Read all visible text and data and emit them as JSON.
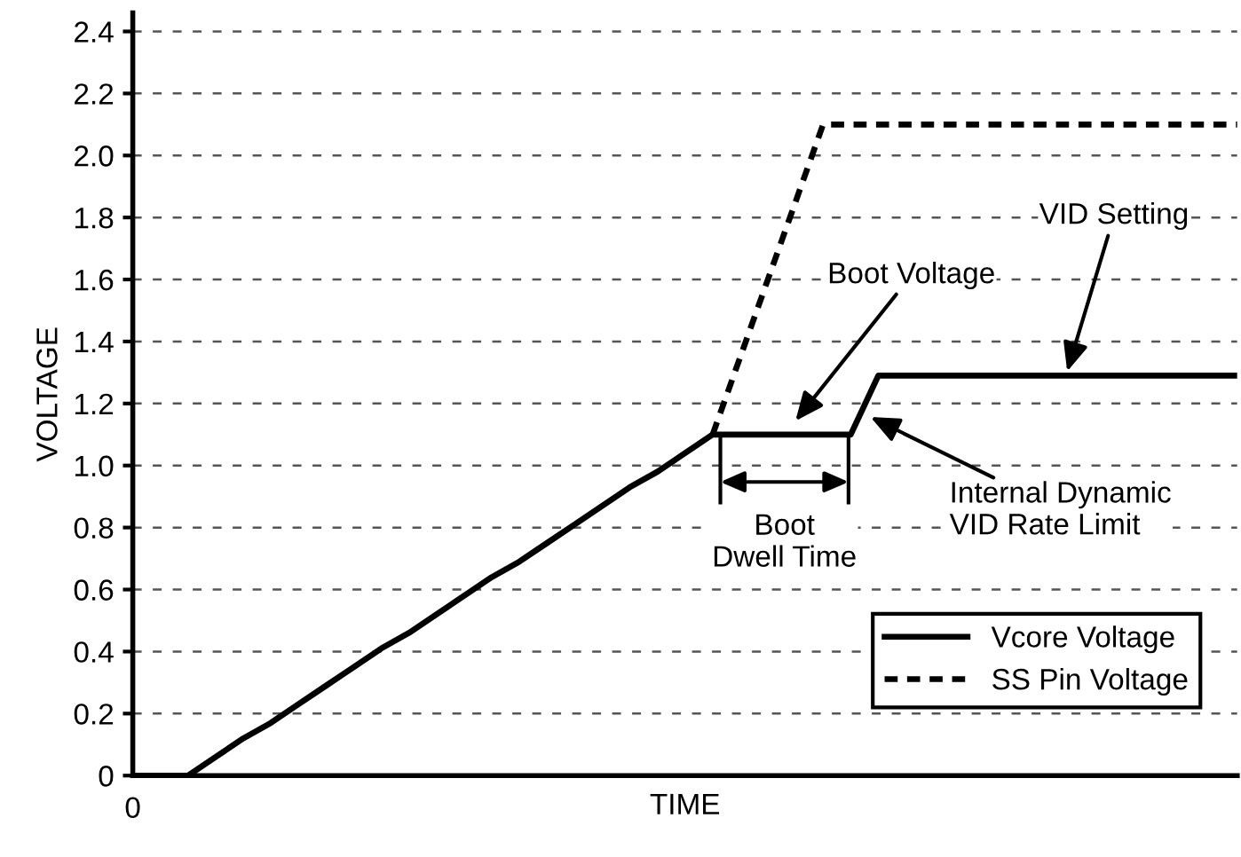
{
  "chart_data": {
    "type": "line",
    "xlabel": "TIME",
    "ylabel": "VOLTAGE",
    "categories": [
      null,
      null,
      null,
      null,
      null,
      null,
      null,
      null,
      null,
      null,
      null,
      null,
      null,
      null,
      null,
      null,
      null,
      null,
      null,
      null,
      null,
      null,
      null,
      null,
      null,
      null,
      null,
      null,
      null,
      null,
      null,
      null,
      null,
      null,
      null,
      null,
      null,
      null,
      null,
      null,
      null
    ],
    "ylim": [
      0,
      2.46
    ],
    "yticks": [
      {
        "value": 0,
        "label": "0"
      },
      {
        "value": 0.2,
        "label": "0.2"
      },
      {
        "value": 0.4,
        "label": "0.4"
      },
      {
        "value": 0.6,
        "label": "0.6"
      },
      {
        "value": 0.8,
        "label": "0.8"
      },
      {
        "value": 1.0,
        "label": "1.0"
      },
      {
        "value": 1.2,
        "label": "1.2"
      },
      {
        "value": 1.4,
        "label": "1.4"
      },
      {
        "value": 1.6,
        "label": "1.6"
      },
      {
        "value": 1.8,
        "label": "1.8"
      },
      {
        "value": 2.0,
        "label": "2.0"
      },
      {
        "value": 2.2,
        "label": "2.2"
      },
      {
        "value": 2.4,
        "label": "2.4"
      }
    ],
    "grid": "y",
    "legend": "bottom right",
    "series": [
      {
        "name": "Vcore Voltage",
        "color": "#000000",
        "line_style": "solid",
        "values": [
          0,
          0,
          0,
          0.06,
          0.12,
          0.17,
          0.23,
          0.29,
          0.35,
          0.41,
          0.46,
          0.52,
          0.58,
          0.64,
          0.69,
          0.75,
          0.81,
          0.87,
          0.93,
          0.98,
          1.04,
          1.1,
          1.1,
          1.1,
          1.1,
          1.1,
          1.1,
          1.29,
          1.29,
          1.29,
          1.29,
          1.29,
          1.29,
          1.29,
          1.29,
          1.29,
          1.29,
          1.29,
          1.29,
          1.29,
          1.29
        ]
      },
      {
        "name": "SS Pin Voltage",
        "color": "#000000",
        "line_style": "dashed",
        "values": [
          null,
          null,
          null,
          null,
          null,
          null,
          null,
          null,
          null,
          null,
          null,
          null,
          null,
          null,
          null,
          null,
          null,
          null,
          null,
          null,
          null,
          1.1,
          1.35,
          1.6,
          1.85,
          2.1,
          2.1,
          2.1,
          2.1,
          2.1,
          2.1,
          2.1,
          2.1,
          2.1,
          2.1,
          2.1,
          2.1,
          2.1,
          2.1,
          2.1,
          2.1
        ]
      }
    ],
    "annotations": [
      "Boot Voltage",
      "VID Setting",
      "Internal Dynamic\nVID Rate Limit",
      "0",
      "Boot\nDwell Time"
    ]
  }
}
